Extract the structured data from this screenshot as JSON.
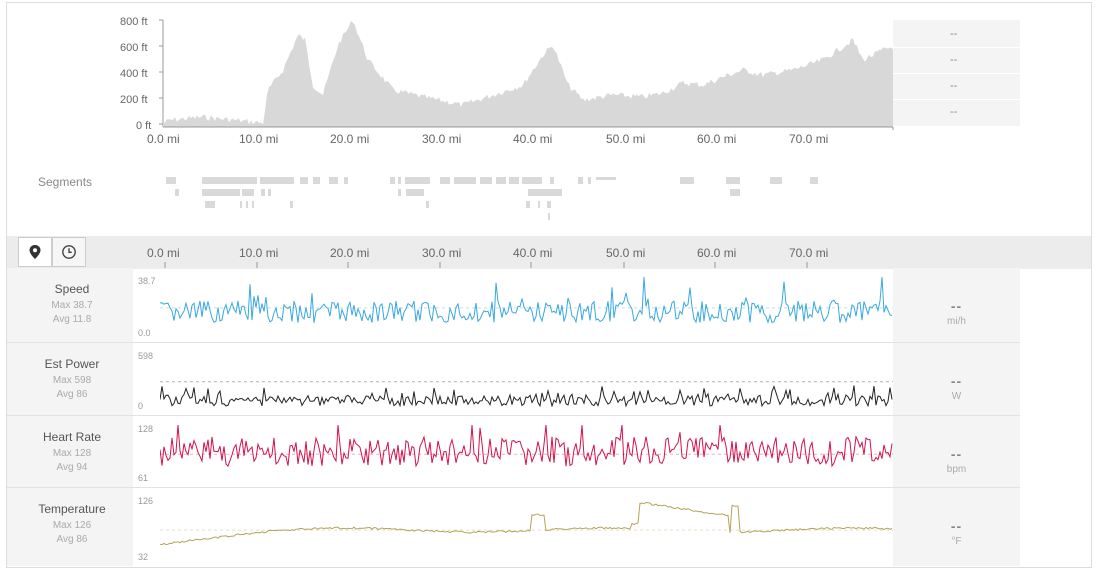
{
  "colors": {
    "speed": "#3aa8dd",
    "power": "#222222",
    "heart": "#d4124a",
    "temp": "#b5a25a",
    "elevation_fill": "#d8d8d8"
  },
  "elevation": {
    "y_ticks": [
      "800 ft",
      "600 ft",
      "400 ft",
      "200 ft",
      "0 ft"
    ],
    "x_ticks": [
      "0.0 mi",
      "10.0 mi",
      "20.0 mi",
      "30.0 mi",
      "40.0 mi",
      "50.0 mi",
      "60.0 mi",
      "70.0 mi"
    ],
    "side_values": [
      "--",
      "--",
      "--",
      "--"
    ]
  },
  "segments": {
    "label": "Segments"
  },
  "toolbar": {
    "distance_icon": "map-pin-icon",
    "time_icon": "clock-icon",
    "x_ticks": [
      "0.0 mi",
      "10.0 mi",
      "20.0 mi",
      "30.0 mi",
      "40.0 mi",
      "50.0 mi",
      "60.0 mi",
      "70.0 mi"
    ]
  },
  "streams": [
    {
      "name": "Speed",
      "max": "Max 38.7",
      "avg": "Avg 11.8",
      "top": "38.7",
      "bottom": "0.0",
      "value": "--",
      "unit": "mi/h"
    },
    {
      "name": "Est Power",
      "max": "Max 598",
      "avg": "Avg 86",
      "top": "598",
      "bottom": "0",
      "value": "--",
      "unit": "W"
    },
    {
      "name": "Heart Rate",
      "max": "Max 128",
      "avg": "Avg 94",
      "top": "128",
      "bottom": "61",
      "value": "--",
      "unit": "bpm"
    },
    {
      "name": "Temperature",
      "max": "Max 126",
      "avg": "Avg 86",
      "top": "126",
      "bottom": "32",
      "value": "--",
      "unit": "°F"
    }
  ]
}
